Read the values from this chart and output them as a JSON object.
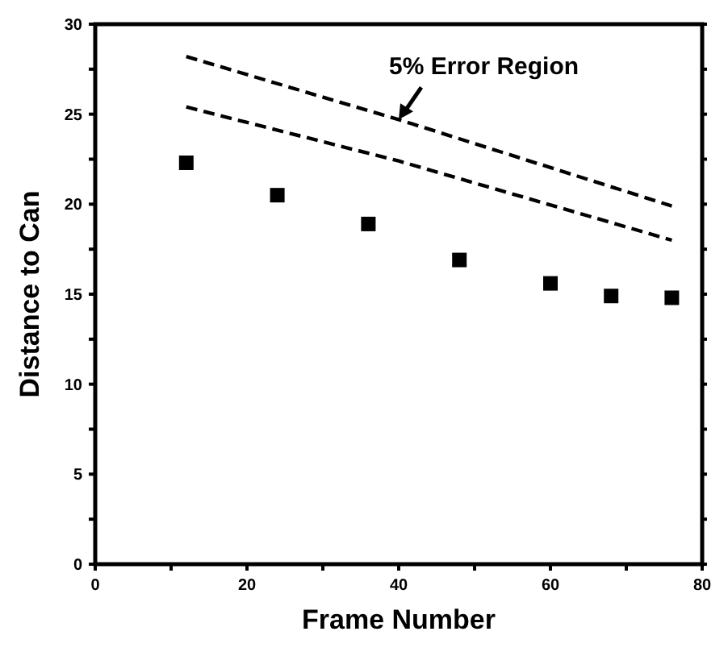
{
  "chart_data": {
    "type": "scatter",
    "xlabel": "Frame Number",
    "ylabel": "Distance to Can",
    "xlim": [
      0,
      80
    ],
    "ylim": [
      0,
      30
    ],
    "xticks": [
      0,
      {
        "value": 10,
        "label": null
      },
      20,
      {
        "value": 30,
        "label": null
      },
      40,
      {
        "value": 50,
        "label": null
      },
      60,
      {
        "value": 70,
        "label": null
      },
      80
    ],
    "yticks": [
      0,
      {
        "value": 2.5,
        "label": null
      },
      5,
      {
        "value": 7.5,
        "label": null
      },
      10,
      {
        "value": 12.5,
        "label": null
      },
      15,
      {
        "value": 17.5,
        "label": null
      },
      20,
      {
        "value": 22.5,
        "label": null
      },
      25,
      {
        "value": 27.5,
        "label": null
      },
      30
    ],
    "grid": false,
    "series": [
      {
        "color": "#000000",
        "marker": "square",
        "x": [
          12,
          24,
          36,
          48,
          60,
          68,
          76
        ],
        "values": [
          22.3,
          20.5,
          18.9,
          16.9,
          15.6,
          14.9,
          14.8
        ]
      },
      {
        "type": "line",
        "color": "#000000",
        "marker": "none",
        "line_style": "dashed",
        "x": [
          12,
          40,
          76
        ],
        "values": [
          28.2,
          24.7,
          19.9
        ]
      },
      {
        "type": "line",
        "color": "#000000",
        "marker": "none",
        "line_style": "dashed",
        "x": [
          12,
          40,
          76
        ],
        "values": [
          25.4,
          22.4,
          18.0
        ]
      }
    ],
    "annotations": [
      {
        "text": "5% Error Region",
        "x": 40,
        "y": 24.7
      }
    ]
  }
}
